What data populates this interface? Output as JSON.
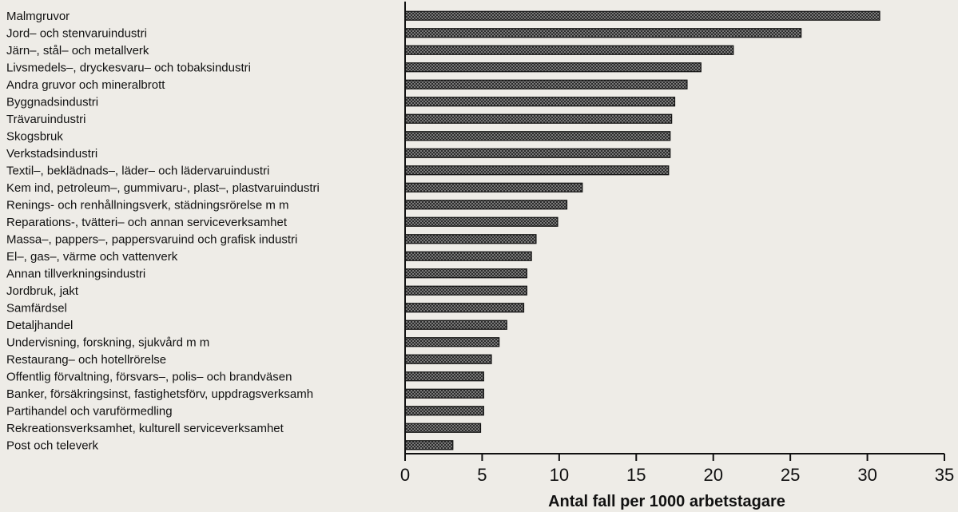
{
  "chart_data": {
    "type": "bar",
    "orientation": "horizontal",
    "categories": [
      "Malmgruvor",
      "Jord– och stenvaruindustri",
      "Järn–, stål– och metallverk",
      "Livsmedels–, dryckesvaru– och tobaksindustri",
      "Andra gruvor och mineralbrott",
      "Byggnadsindustri",
      "Trävaruindustri",
      "Skogsbruk",
      "Verkstadsindustri",
      "Textil–, beklädnads–, läder– och lädervaruindustri",
      "Kem ind, petroleum–, gummivaru-, plast–, plastvaruindustri",
      "Renings- och renhållningsverk, städningsrörelse m m",
      "Reparations-, tvätteri– och annan serviceverksamhet",
      "Massa–, pappers–, pappersvaruind och grafisk industri",
      "El–, gas–, värme och vattenverk",
      "Annan tillverkningsindustri",
      "Jordbruk, jakt",
      "Samfärdsel",
      "Detaljhandel",
      "Undervisning, forskning, sjukvård m m",
      "Restaurang– och hotellrörelse",
      "Offentlig förvaltning, försvars–, polis– och brandväsen",
      "Banker, försäkringsinst, fastighetsförv, uppdragsverksamh",
      "Partihandel och varuförmedling",
      "Rekreationsverksamhet, kulturell serviceverksamhet",
      "Post och televerk"
    ],
    "values": [
      30.8,
      25.7,
      21.3,
      19.2,
      18.3,
      17.5,
      17.3,
      17.2,
      17.2,
      17.1,
      11.5,
      10.5,
      9.9,
      8.5,
      8.2,
      7.9,
      7.9,
      7.7,
      6.6,
      6.1,
      5.6,
      5.1,
      5.1,
      5.1,
      4.9,
      3.1
    ],
    "title": "",
    "xlabel": "Antal fall per 1000 arbetstagare",
    "ylabel": "",
    "xlim": [
      0,
      35
    ],
    "xticks": [
      "0",
      "5",
      "10",
      "15",
      "20",
      "25",
      "30",
      "35"
    ],
    "grid": false,
    "bar_fill": "#555555",
    "bar_stroke": "#111111"
  }
}
